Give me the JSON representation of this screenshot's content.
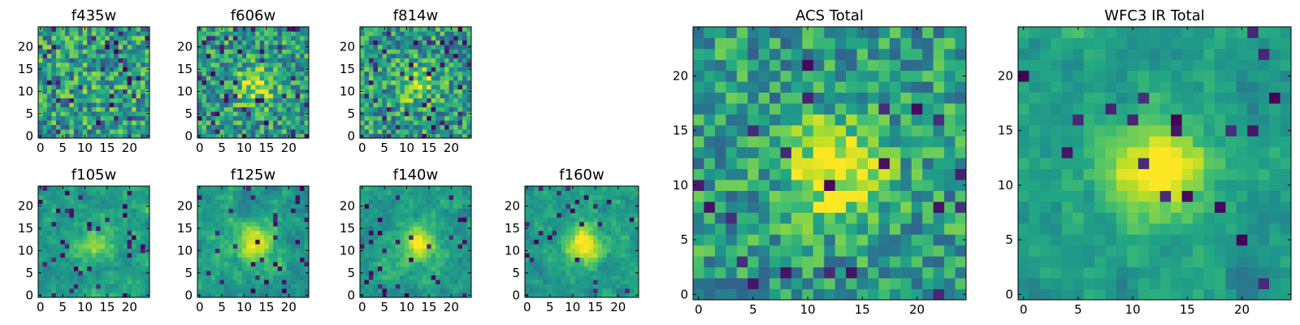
{
  "chart_data": {
    "type": "heatmap",
    "colormap": "viridis",
    "grid": false,
    "grid_size": 25,
    "panels": [
      {
        "title": "f435w",
        "size": "small",
        "xticks": [
          0,
          5,
          10,
          15,
          20
        ],
        "yticks": [
          0,
          5,
          10,
          15,
          20
        ],
        "xlim": [
          0,
          24
        ],
        "ylim": [
          0,
          24
        ],
        "seed": 11,
        "blob_strength": 0.05,
        "noise": 1.0,
        "smooth": 0,
        "dark_fraction": 0.05
      },
      {
        "title": "f606w",
        "size": "small",
        "xticks": [
          0,
          5,
          10,
          15,
          20
        ],
        "yticks": [
          0,
          5,
          10,
          15,
          20
        ],
        "xlim": [
          0,
          24
        ],
        "ylim": [
          0,
          24
        ],
        "seed": 23,
        "blob_strength": 0.35,
        "noise": 0.9,
        "smooth": 0,
        "dark_fraction": 0.07
      },
      {
        "title": "f814w",
        "size": "small",
        "xticks": [
          0,
          5,
          10,
          15,
          20
        ],
        "yticks": [
          0,
          5,
          10,
          15,
          20
        ],
        "xlim": [
          0,
          24
        ],
        "ylim": [
          0,
          24
        ],
        "seed": 37,
        "blob_strength": 0.3,
        "noise": 0.9,
        "smooth": 0,
        "dark_fraction": 0.07
      },
      {
        "title": "f105w",
        "size": "small",
        "xticks": [
          0,
          5,
          10,
          15,
          20
        ],
        "yticks": [
          0,
          5,
          10,
          15,
          20
        ],
        "xlim": [
          0,
          24
        ],
        "ylim": [
          0,
          24
        ],
        "seed": 41,
        "blob_strength": 0.3,
        "noise": 0.8,
        "smooth": 1,
        "dark_fraction": 0.06
      },
      {
        "title": "f125w",
        "size": "small",
        "xticks": [
          0,
          5,
          10,
          15,
          20
        ],
        "yticks": [
          0,
          5,
          10,
          15,
          20
        ],
        "xlim": [
          0,
          24
        ],
        "ylim": [
          0,
          24
        ],
        "seed": 53,
        "blob_strength": 0.45,
        "noise": 0.8,
        "smooth": 1,
        "dark_fraction": 0.05
      },
      {
        "title": "f140w",
        "size": "small",
        "xticks": [
          0,
          5,
          10,
          15,
          20
        ],
        "yticks": [
          0,
          5,
          10,
          15,
          20
        ],
        "xlim": [
          0,
          24
        ],
        "ylim": [
          0,
          24
        ],
        "seed": 67,
        "blob_strength": 0.45,
        "noise": 0.75,
        "smooth": 1,
        "dark_fraction": 0.05
      },
      {
        "title": "f160w",
        "size": "small",
        "xticks": [
          0,
          5,
          10,
          15,
          20
        ],
        "yticks": [
          0,
          5,
          10,
          15,
          20
        ],
        "xlim": [
          0,
          24
        ],
        "ylim": [
          0,
          24
        ],
        "seed": 79,
        "blob_strength": 0.5,
        "noise": 0.7,
        "smooth": 1,
        "dark_fraction": 0.04
      },
      {
        "title": "ACS Total",
        "size": "large",
        "xticks": [
          0,
          5,
          10,
          15,
          20
        ],
        "yticks": [
          0,
          5,
          10,
          15,
          20
        ],
        "xlim": [
          0,
          24
        ],
        "ylim": [
          0,
          24
        ],
        "seed": 97,
        "blob_strength": 0.5,
        "noise": 0.8,
        "smooth": 0,
        "dark_fraction": 0.035
      },
      {
        "title": "WFC3 IR Total",
        "size": "large",
        "xticks": [
          0,
          5,
          10,
          15,
          20
        ],
        "yticks": [
          0,
          5,
          10,
          15,
          20
        ],
        "xlim": [
          0,
          24
        ],
        "ylim": [
          0,
          24
        ],
        "seed": 131,
        "blob_strength": 0.6,
        "noise": 0.65,
        "smooth": 1,
        "dark_fraction": 0.03
      }
    ]
  }
}
